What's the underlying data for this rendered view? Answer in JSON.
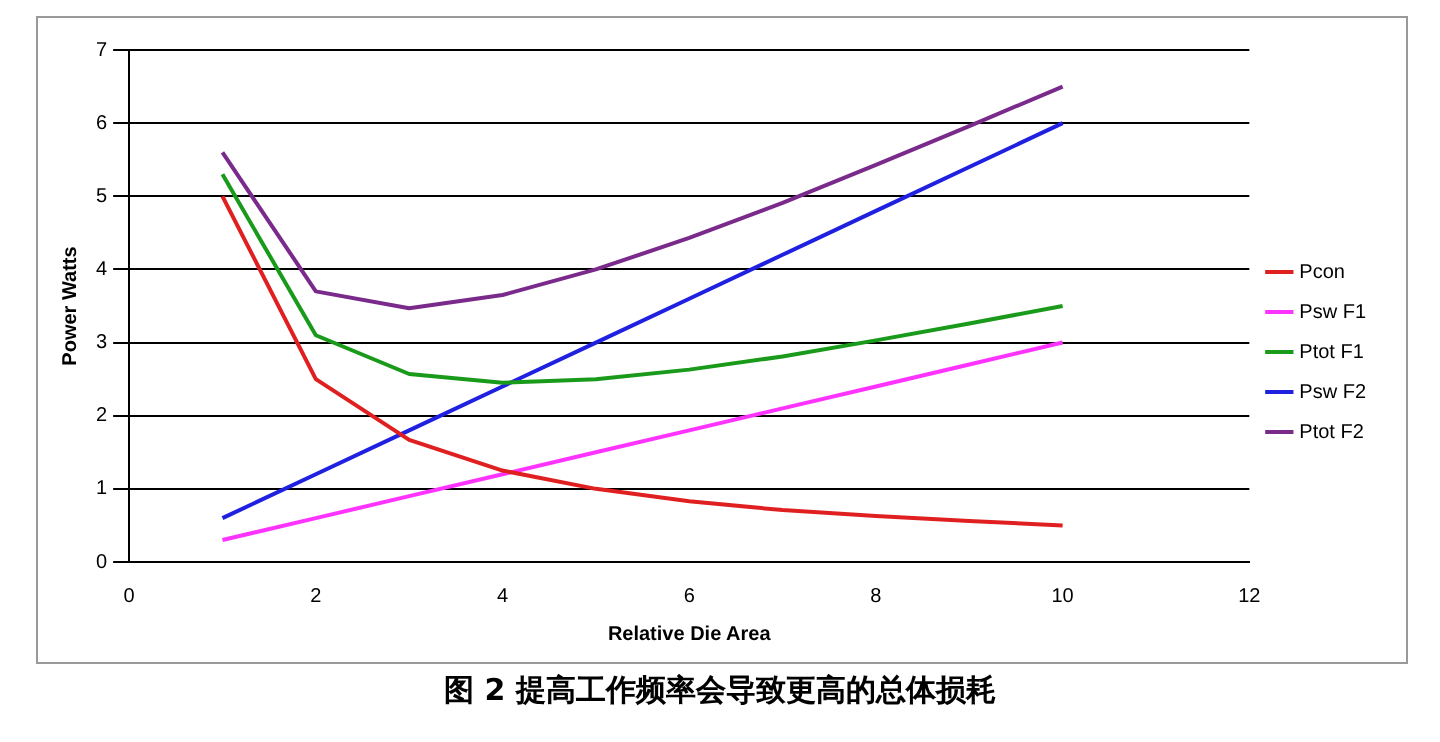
{
  "chart_data": {
    "type": "line",
    "xlabel": "Relative Die Area",
    "ylabel": "Power Watts",
    "x": [
      1,
      2,
      3,
      4,
      5,
      6,
      7,
      8,
      9,
      10
    ],
    "series": [
      {
        "name": "Pcon",
        "color": "#e02020",
        "values": [
          5.0,
          2.5,
          1.67,
          1.25,
          1.0,
          0.83,
          0.71,
          0.63,
          0.56,
          0.5
        ]
      },
      {
        "name": "Psw F1",
        "color": "#ff33ff",
        "values": [
          0.3,
          0.6,
          0.9,
          1.2,
          1.5,
          1.8,
          2.1,
          2.4,
          2.7,
          3.0
        ]
      },
      {
        "name": "Ptot F1",
        "color": "#1a9a1a",
        "values": [
          5.3,
          3.1,
          2.57,
          2.45,
          2.5,
          2.63,
          2.81,
          3.03,
          3.26,
          3.5
        ]
      },
      {
        "name": "Psw F2",
        "color": "#2020e0",
        "values": [
          0.6,
          1.2,
          1.8,
          2.4,
          3.0,
          3.6,
          4.2,
          4.8,
          5.4,
          6.0
        ]
      },
      {
        "name": "Ptot F2",
        "color": "#7a2a8a",
        "values": [
          5.6,
          3.7,
          3.47,
          3.65,
          4.0,
          4.43,
          4.91,
          5.43,
          5.96,
          6.5
        ]
      }
    ],
    "xlim": [
      0,
      12
    ],
    "xticks": [
      0,
      2,
      4,
      6,
      8,
      10,
      12
    ],
    "ylim": [
      0,
      7
    ],
    "yticks": [
      0,
      1,
      2,
      3,
      4,
      5,
      6,
      7
    ],
    "grid": "y",
    "legend": "right",
    "marker": "none",
    "line_style": "solid",
    "annotations": [
      "图 2 提高工作频率会导致更高的总体损耗"
    ]
  }
}
